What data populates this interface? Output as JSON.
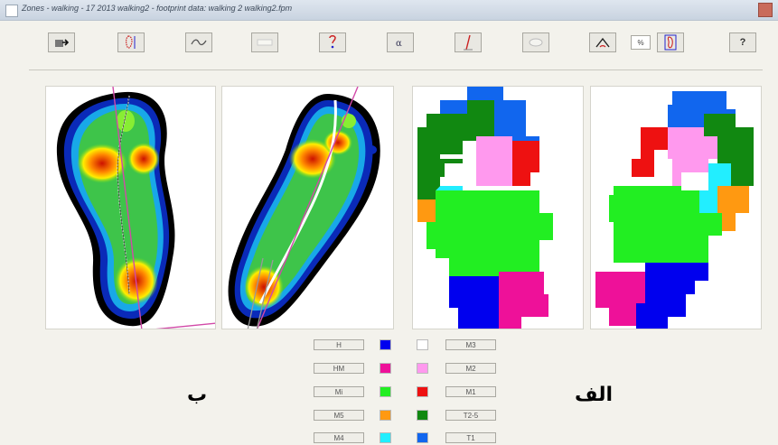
{
  "window": {
    "title": "Zones - walking - 17 2013 walking2 - footprint data: walking 2 walking2.fpm"
  },
  "toolbar": {
    "buttons": [
      {
        "name": "open-button",
        "icon": "folder-arrow-icon"
      },
      {
        "name": "foot-outline-button",
        "icon": "foot-dots-icon"
      },
      {
        "name": "curve-button",
        "icon": "wave-icon"
      },
      {
        "name": "blank-button",
        "icon": "blank-icon"
      },
      {
        "name": "foot-question-button",
        "icon": "foot-question-icon"
      },
      {
        "name": "alpha-button",
        "icon": "alpha-icon"
      },
      {
        "name": "axis-line-button",
        "icon": "axis-line-icon"
      },
      {
        "name": "ellipse-button",
        "icon": "ellipse-icon"
      },
      {
        "name": "angle-button",
        "icon": "angle-icon"
      },
      {
        "name": "foot-frame-button",
        "icon": "foot-frame-icon"
      },
      {
        "name": "help-button",
        "icon": "question-icon",
        "label": "?"
      }
    ],
    "spinner_value": "%"
  },
  "labels": {
    "left": "ب",
    "right": "الف"
  },
  "legend": {
    "left_column": [
      {
        "label": "H",
        "color": "#0000ee"
      },
      {
        "label": "HM",
        "color": "#ee1199"
      },
      {
        "label": "Mi",
        "color": "#22ee22"
      },
      {
        "label": "M5",
        "color": "#ff9911"
      },
      {
        "label": "M4",
        "color": "#22eeff"
      }
    ],
    "right_column": [
      {
        "label": "M3",
        "color": "#ffffff"
      },
      {
        "label": "M2",
        "color": "#ff99ee"
      },
      {
        "label": "M1",
        "color": "#ee1111"
      },
      {
        "label": "T2-5",
        "color": "#118811"
      },
      {
        "label": "T1",
        "color": "#1166ee"
      }
    ]
  }
}
